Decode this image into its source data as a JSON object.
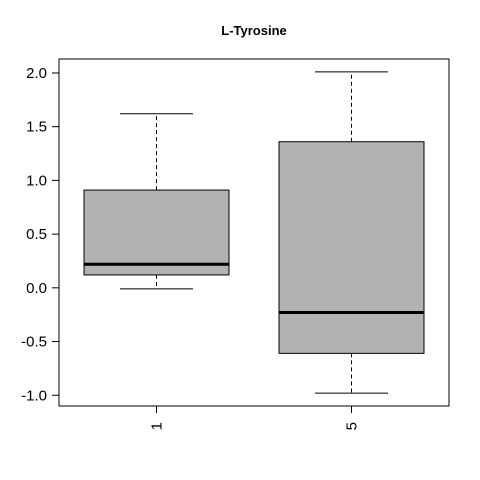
{
  "chart_data": {
    "type": "box",
    "title": "L-Tyrosine",
    "xlabel": "",
    "ylabel": "",
    "categories": [
      "1",
      "5"
    ],
    "boxes": [
      {
        "category": "1",
        "whisker_low": -0.01,
        "q1": 0.12,
        "median": 0.22,
        "q3": 0.91,
        "whisker_high": 1.62
      },
      {
        "category": "5",
        "whisker_low": -0.98,
        "q1": -0.61,
        "median": -0.23,
        "q3": 1.36,
        "whisker_high": 2.01
      }
    ],
    "ylim": [
      -1.1,
      2.13
    ],
    "yticks": [
      -1.0,
      -0.5,
      0.0,
      0.5,
      1.0,
      1.5,
      2.0
    ],
    "ytick_labels": [
      "-1.0",
      "-0.5",
      "0.0",
      "0.5",
      "1.0",
      "1.5",
      "2.0"
    ],
    "box_color": "#b2b2b2",
    "grid": false,
    "legend": "none"
  }
}
